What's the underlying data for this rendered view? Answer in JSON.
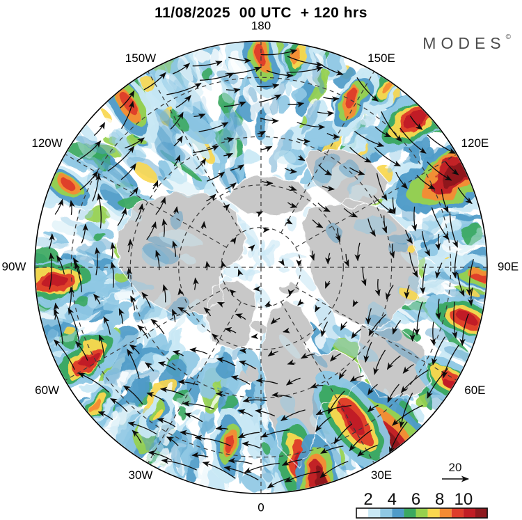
{
  "header": {
    "title": "11/08/2025  00 UTC  + 120 hrs"
  },
  "branding": {
    "logo_text": "MODES",
    "logo_mark": "©"
  },
  "chart_data": {
    "type": "heatmap",
    "projection": "north-polar-stereographic",
    "center": "North Pole",
    "title": "11/08/2025  00 UTC  + 120 hrs",
    "ocean_color": "#ffffff",
    "land_color": "#c8c8c8",
    "coast_color": "#fafafa",
    "arrow_color": "#0d0d0d",
    "colorbar": {
      "levels": [
        2,
        3,
        4,
        5,
        6,
        7,
        8,
        9,
        10,
        11
      ],
      "tick_labels": [
        "2",
        "4",
        "6",
        "8",
        "10"
      ],
      "colors": [
        "#ffffff",
        "#c9e8f5",
        "#8fc8e4",
        "#4f9bc8",
        "#3aa860",
        "#97d14e",
        "#f9d74f",
        "#f58b33",
        "#de3c2b",
        "#c01d25",
        "#8e191e"
      ]
    },
    "vector_legend": {
      "value": "20"
    },
    "graticule": {
      "longitude_labels": [
        {
          "lon": 180,
          "label": "180"
        },
        {
          "lon": -150,
          "label": "150W"
        },
        {
          "lon": -120,
          "label": "120W"
        },
        {
          "lon": -90,
          "label": "90W"
        },
        {
          "lon": -60,
          "label": "60W"
        },
        {
          "lon": -30,
          "label": "30W"
        },
        {
          "lon": 0,
          "label": "0"
        },
        {
          "lon": 30,
          "label": "30E"
        },
        {
          "lon": 60,
          "label": "60E"
        },
        {
          "lon": 90,
          "label": "90E"
        },
        {
          "lon": 120,
          "label": "120E"
        },
        {
          "lon": 150,
          "label": "150E"
        }
      ],
      "latitude_circles_deg": [
        70,
        50,
        30,
        10
      ]
    },
    "flow": {
      "screen_rotation": "clockwise"
    },
    "high_value_regions": [
      {
        "lon": 36,
        "lat": 2,
        "intensity": 11,
        "size": 52
      },
      {
        "lon": 31,
        "lat": 13,
        "intensity": 10,
        "size": 38
      },
      {
        "lon": 11,
        "lat": 8,
        "intensity": 10,
        "size": 32
      },
      {
        "lon": 15,
        "lat": 1,
        "intensity": 11,
        "size": 30
      },
      {
        "lon": 59,
        "lat": 1,
        "intensity": 10,
        "size": 26
      },
      {
        "lon": 76,
        "lat": 4,
        "intensity": 10,
        "size": 28
      },
      {
        "lon": 88,
        "lat": 2,
        "intensity": 9,
        "size": 24
      },
      {
        "lon": 115,
        "lat": 3,
        "intensity": 11,
        "size": 42
      },
      {
        "lon": 134,
        "lat": 3,
        "intensity": 10,
        "size": 34
      },
      {
        "lon": 146,
        "lat": 1,
        "intensity": 8,
        "size": 24
      },
      {
        "lon": 151,
        "lat": 10,
        "intensity": 9,
        "size": 24
      },
      {
        "lon": 170,
        "lat": 3,
        "intensity": 8,
        "size": 22
      },
      {
        "lon": 180,
        "lat": 4,
        "intensity": 9,
        "size": 28
      },
      {
        "lon": -141,
        "lat": 4,
        "intensity": 9,
        "size": 28
      },
      {
        "lon": -113,
        "lat": 4,
        "intensity": 9,
        "size": 24
      },
      {
        "lon": -86,
        "lat": 5,
        "intensity": 10,
        "size": 32
      },
      {
        "lon": -62,
        "lat": 8,
        "intensity": 10,
        "size": 28
      },
      {
        "lon": -50,
        "lat": 3,
        "intensity": 8,
        "size": 20
      },
      {
        "lon": -35,
        "lat": 13,
        "intensity": 7,
        "size": 18
      },
      {
        "lon": -10,
        "lat": 13,
        "intensity": 9,
        "size": 24
      }
    ]
  }
}
